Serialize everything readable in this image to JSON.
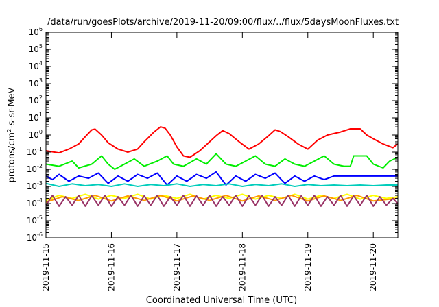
{
  "chart_data": {
    "type": "line",
    "title": "/data/run/goesPlots/archive/2019-11-20/09:00/flux/../flux/5daysMoonFluxes.txt",
    "xlabel": "Coordinated Universal Time (UTC)",
    "ylabel": {
      "base": "protons/cm",
      "sup": "2",
      "rest": "-s-sr-MeV"
    },
    "yscale": "log",
    "ylim": [
      1e-06,
      1000000.0
    ],
    "xlim": [
      "2019-11-15 00:00",
      "2019-11-20 09:00"
    ],
    "x_tick_labels": [
      "2019-11-15",
      "2019-11-16",
      "2019-11-17",
      "2019-11-18",
      "2019-11-19",
      "2019-11-20"
    ],
    "y_ticks": [
      {
        "base": "10",
        "exp": "6",
        "value": 6
      },
      {
        "base": "10",
        "exp": "5",
        "value": 5
      },
      {
        "base": "10",
        "exp": "4",
        "value": 4
      },
      {
        "base": "10",
        "exp": "3",
        "value": 3
      },
      {
        "base": "10",
        "exp": "2",
        "value": 2
      },
      {
        "base": "10",
        "exp": "1",
        "value": 1
      },
      {
        "base": "10",
        "exp": "0",
        "value": 0
      },
      {
        "base": "10",
        "exp": "-1",
        "value": -1
      },
      {
        "base": "10",
        "exp": "-2",
        "value": -2
      },
      {
        "base": "10",
        "exp": "-3",
        "value": -3
      },
      {
        "base": "10",
        "exp": "-4",
        "value": -4
      },
      {
        "base": "10",
        "exp": "-5",
        "value": -5
      },
      {
        "base": "10",
        "exp": "-6",
        "value": -6
      }
    ],
    "grid": false,
    "series": [
      {
        "color": "#ff0000",
        "points": [
          [
            0,
            0.12
          ],
          [
            0.2,
            0.09
          ],
          [
            0.35,
            0.15
          ],
          [
            0.5,
            0.3
          ],
          [
            0.6,
            0.8
          ],
          [
            0.7,
            2.0
          ],
          [
            0.75,
            2.2
          ],
          [
            0.85,
            1.0
          ],
          [
            0.95,
            0.35
          ],
          [
            1.1,
            0.15
          ],
          [
            1.25,
            0.1
          ],
          [
            1.4,
            0.15
          ],
          [
            1.5,
            0.4
          ],
          [
            1.65,
            1.5
          ],
          [
            1.75,
            3.0
          ],
          [
            1.82,
            2.5
          ],
          [
            1.9,
            1.0
          ],
          [
            2.0,
            0.2
          ],
          [
            2.1,
            0.06
          ],
          [
            2.2,
            0.05
          ],
          [
            2.35,
            0.12
          ],
          [
            2.5,
            0.4
          ],
          [
            2.6,
            0.9
          ],
          [
            2.7,
            1.8
          ],
          [
            2.8,
            1.2
          ],
          [
            2.95,
            0.4
          ],
          [
            3.1,
            0.15
          ],
          [
            3.25,
            0.3
          ],
          [
            3.4,
            0.9
          ],
          [
            3.5,
            2.0
          ],
          [
            3.58,
            1.6
          ],
          [
            3.7,
            0.8
          ],
          [
            3.85,
            0.3
          ],
          [
            4.0,
            0.15
          ],
          [
            4.15,
            0.5
          ],
          [
            4.3,
            1.0
          ],
          [
            4.5,
            1.5
          ],
          [
            4.65,
            2.3
          ],
          [
            4.8,
            2.3
          ],
          [
            4.9,
            1.0
          ],
          [
            5.0,
            0.6
          ],
          [
            5.15,
            0.3
          ],
          [
            5.3,
            0.18
          ],
          [
            5.375,
            0.3
          ]
        ]
      },
      {
        "color": "#00ee00",
        "points": [
          [
            0,
            0.02
          ],
          [
            0.2,
            0.015
          ],
          [
            0.4,
            0.03
          ],
          [
            0.5,
            0.012
          ],
          [
            0.7,
            0.02
          ],
          [
            0.85,
            0.06
          ],
          [
            0.95,
            0.02
          ],
          [
            1.05,
            0.01
          ],
          [
            1.2,
            0.02
          ],
          [
            1.35,
            0.04
          ],
          [
            1.5,
            0.015
          ],
          [
            1.7,
            0.03
          ],
          [
            1.85,
            0.06
          ],
          [
            1.95,
            0.02
          ],
          [
            2.1,
            0.015
          ],
          [
            2.3,
            0.04
          ],
          [
            2.45,
            0.02
          ],
          [
            2.6,
            0.08
          ],
          [
            2.75,
            0.02
          ],
          [
            2.9,
            0.015
          ],
          [
            3.05,
            0.03
          ],
          [
            3.2,
            0.06
          ],
          [
            3.35,
            0.02
          ],
          [
            3.5,
            0.015
          ],
          [
            3.65,
            0.04
          ],
          [
            3.8,
            0.02
          ],
          [
            3.95,
            0.015
          ],
          [
            4.1,
            0.03
          ],
          [
            4.25,
            0.06
          ],
          [
            4.4,
            0.02
          ],
          [
            4.55,
            0.015
          ],
          [
            4.65,
            0.015
          ],
          [
            4.7,
            0.06
          ],
          [
            4.9,
            0.06
          ],
          [
            5.0,
            0.02
          ],
          [
            5.15,
            0.012
          ],
          [
            5.25,
            0.03
          ],
          [
            5.375,
            0.05
          ]
        ]
      },
      {
        "color": "#0000ff",
        "points": [
          [
            0,
            0.004
          ],
          [
            0.1,
            0.0025
          ],
          [
            0.2,
            0.005
          ],
          [
            0.35,
            0.002
          ],
          [
            0.5,
            0.004
          ],
          [
            0.65,
            0.003
          ],
          [
            0.8,
            0.006
          ],
          [
            0.95,
            0.0015
          ],
          [
            1.1,
            0.004
          ],
          [
            1.25,
            0.002
          ],
          [
            1.4,
            0.005
          ],
          [
            1.55,
            0.003
          ],
          [
            1.7,
            0.006
          ],
          [
            1.85,
            0.0012
          ],
          [
            2.0,
            0.004
          ],
          [
            2.15,
            0.002
          ],
          [
            2.3,
            0.005
          ],
          [
            2.45,
            0.003
          ],
          [
            2.6,
            0.007
          ],
          [
            2.75,
            0.0012
          ],
          [
            2.9,
            0.004
          ],
          [
            3.05,
            0.002
          ],
          [
            3.2,
            0.005
          ],
          [
            3.35,
            0.003
          ],
          [
            3.5,
            0.006
          ],
          [
            3.65,
            0.0015
          ],
          [
            3.8,
            0.004
          ],
          [
            3.95,
            0.002
          ],
          [
            4.1,
            0.004
          ],
          [
            4.25,
            0.0025
          ],
          [
            4.4,
            0.004
          ],
          [
            4.6,
            0.004
          ],
          [
            4.8,
            0.004
          ],
          [
            5.0,
            0.004
          ],
          [
            5.2,
            0.004
          ],
          [
            5.375,
            0.004
          ]
        ]
      },
      {
        "color": "#00ccbb",
        "points": [
          [
            0,
            0.0015
          ],
          [
            0.2,
            0.001
          ],
          [
            0.4,
            0.0014
          ],
          [
            0.6,
            0.0011
          ],
          [
            0.8,
            0.0013
          ],
          [
            1.0,
            0.001
          ],
          [
            1.2,
            0.0014
          ],
          [
            1.4,
            0.001
          ],
          [
            1.6,
            0.0013
          ],
          [
            1.8,
            0.0011
          ],
          [
            2.0,
            0.0014
          ],
          [
            2.2,
            0.001
          ],
          [
            2.4,
            0.0013
          ],
          [
            2.6,
            0.0011
          ],
          [
            2.8,
            0.0014
          ],
          [
            3.0,
            0.001
          ],
          [
            3.2,
            0.0013
          ],
          [
            3.4,
            0.0011
          ],
          [
            3.6,
            0.0014
          ],
          [
            3.8,
            0.001
          ],
          [
            4.0,
            0.0013
          ],
          [
            4.2,
            0.0011
          ],
          [
            4.4,
            0.0012
          ],
          [
            4.6,
            0.0011
          ],
          [
            4.8,
            0.0012
          ],
          [
            5.0,
            0.0011
          ],
          [
            5.2,
            0.0012
          ],
          [
            5.375,
            0.0012
          ]
        ]
      },
      {
        "color": "#ffff00",
        "points": [
          [
            0,
            0.00015
          ],
          [
            0.2,
            0.0003
          ],
          [
            0.4,
            0.0002
          ],
          [
            0.6,
            0.00035
          ],
          [
            0.8,
            0.00018
          ],
          [
            1.0,
            0.0003
          ],
          [
            1.2,
            0.0002
          ],
          [
            1.4,
            0.00035
          ],
          [
            1.6,
            0.00018
          ],
          [
            1.8,
            0.0003
          ],
          [
            2.0,
            0.0002
          ],
          [
            2.2,
            0.00035
          ],
          [
            2.4,
            0.00018
          ],
          [
            2.6,
            0.0003
          ],
          [
            2.8,
            0.0002
          ],
          [
            3.0,
            0.00035
          ],
          [
            3.2,
            0.00018
          ],
          [
            3.4,
            0.0003
          ],
          [
            3.6,
            0.0002
          ],
          [
            3.8,
            0.00035
          ],
          [
            4.0,
            0.00018
          ],
          [
            4.2,
            0.0003
          ],
          [
            4.4,
            0.0002
          ],
          [
            4.6,
            0.00035
          ],
          [
            4.8,
            0.00018
          ],
          [
            5.0,
            0.0003
          ],
          [
            5.2,
            0.0002
          ],
          [
            5.375,
            0.00025
          ]
        ]
      },
      {
        "color": "#ff9900",
        "points": [
          [
            0,
            0.00012
          ],
          [
            0.25,
            0.00025
          ],
          [
            0.5,
            0.00015
          ],
          [
            0.75,
            0.0003
          ],
          [
            1.0,
            0.00014
          ],
          [
            1.25,
            0.00028
          ],
          [
            1.5,
            0.00015
          ],
          [
            1.75,
            0.0003
          ],
          [
            2.0,
            0.00014
          ],
          [
            2.25,
            0.00028
          ],
          [
            2.5,
            0.00015
          ],
          [
            2.75,
            0.0003
          ],
          [
            3.0,
            0.00014
          ],
          [
            3.25,
            0.00028
          ],
          [
            3.5,
            0.00015
          ],
          [
            3.75,
            0.0003
          ],
          [
            4.0,
            0.00014
          ],
          [
            4.25,
            0.00028
          ],
          [
            4.5,
            0.00015
          ],
          [
            4.75,
            0.0003
          ],
          [
            5.0,
            0.00014
          ],
          [
            5.375,
            0.0002
          ]
        ]
      },
      {
        "color": "#993366",
        "points": [
          [
            0,
            8e-05
          ],
          [
            0.1,
            0.0003
          ],
          [
            0.2,
            7e-05
          ],
          [
            0.3,
            0.00025
          ],
          [
            0.4,
            8e-05
          ],
          [
            0.5,
            0.0003
          ],
          [
            0.6,
            7e-05
          ],
          [
            0.7,
            0.00028
          ],
          [
            0.8,
            8e-05
          ],
          [
            0.9,
            0.0003
          ],
          [
            1.0,
            7e-05
          ],
          [
            1.1,
            0.00025
          ],
          [
            1.2,
            8e-05
          ],
          [
            1.3,
            0.0003
          ],
          [
            1.4,
            7e-05
          ],
          [
            1.5,
            0.00028
          ],
          [
            1.6,
            8e-05
          ],
          [
            1.7,
            0.0003
          ],
          [
            1.8,
            7e-05
          ],
          [
            1.9,
            0.00025
          ],
          [
            2.0,
            8e-05
          ],
          [
            2.1,
            0.0003
          ],
          [
            2.2,
            7e-05
          ],
          [
            2.3,
            0.00028
          ],
          [
            2.4,
            8e-05
          ],
          [
            2.5,
            0.0003
          ],
          [
            2.6,
            7e-05
          ],
          [
            2.7,
            0.00025
          ],
          [
            2.8,
            8e-05
          ],
          [
            2.9,
            0.0003
          ],
          [
            3.0,
            7e-05
          ],
          [
            3.1,
            0.00028
          ],
          [
            3.2,
            8e-05
          ],
          [
            3.3,
            0.0003
          ],
          [
            3.4,
            7e-05
          ],
          [
            3.5,
            0.00025
          ],
          [
            3.6,
            8e-05
          ],
          [
            3.7,
            0.0003
          ],
          [
            3.8,
            7e-05
          ],
          [
            3.9,
            0.00028
          ],
          [
            4.0,
            8e-05
          ],
          [
            4.1,
            0.0003
          ],
          [
            4.2,
            7e-05
          ],
          [
            4.3,
            0.00025
          ],
          [
            4.4,
            8e-05
          ],
          [
            4.5,
            0.0003
          ],
          [
            4.6,
            7e-05
          ],
          [
            4.7,
            0.00028
          ],
          [
            4.8,
            8e-05
          ],
          [
            4.9,
            0.0003
          ],
          [
            5.0,
            7e-05
          ],
          [
            5.1,
            0.00025
          ],
          [
            5.2,
            8e-05
          ],
          [
            5.3,
            0.0002
          ],
          [
            5.375,
            0.0001
          ]
        ]
      }
    ]
  }
}
